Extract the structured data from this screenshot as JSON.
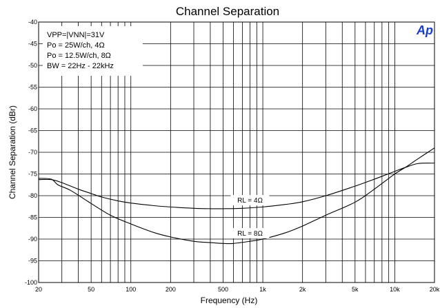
{
  "chart_data": {
    "type": "line",
    "title": "Channel Separation",
    "xlabel": "Frequency (Hz)",
    "ylabel": "Channel Separation (dBr)",
    "x_scale": "log",
    "xlim": [
      20,
      20000
    ],
    "ylim": [
      -100,
      -40
    ],
    "grid": true,
    "x_ticks": [
      {
        "value": 20,
        "label": "20"
      },
      {
        "value": 50,
        "label": "50"
      },
      {
        "value": 100,
        "label": "100"
      },
      {
        "value": 200,
        "label": "200"
      },
      {
        "value": 500,
        "label": "500"
      },
      {
        "value": 1000,
        "label": "1k"
      },
      {
        "value": 2000,
        "label": "2k"
      },
      {
        "value": 5000,
        "label": "5k"
      },
      {
        "value": 10000,
        "label": "10k"
      },
      {
        "value": 20000,
        "label": "20k"
      }
    ],
    "y_ticks": [
      {
        "value": -40,
        "label": "-40"
      },
      {
        "value": -45,
        "label": "-45"
      },
      {
        "value": -50,
        "label": "-50"
      },
      {
        "value": -55,
        "label": "-55"
      },
      {
        "value": -60,
        "label": "-60"
      },
      {
        "value": -65,
        "label": "-65"
      },
      {
        "value": -70,
        "label": "-70"
      },
      {
        "value": -75,
        "label": "-75"
      },
      {
        "value": -80,
        "label": "-80"
      },
      {
        "value": -85,
        "label": "-85"
      },
      {
        "value": -90,
        "label": "-90"
      },
      {
        "value": -95,
        "label": "-95"
      },
      {
        "value": -100,
        "label": "-100"
      }
    ],
    "series": [
      {
        "name": "RL = 4Ω",
        "x": [
          20,
          25,
          30,
          40,
          50,
          60,
          80,
          100,
          150,
          200,
          300,
          400,
          500,
          700,
          1000,
          1500,
          2000,
          3000,
          5000,
          7000,
          10000,
          12000,
          15000,
          20000
        ],
        "y": [
          -76.3,
          -76.3,
          -77.0,
          -78.5,
          -79.5,
          -80.3,
          -81.2,
          -81.7,
          -82.3,
          -82.6,
          -82.9,
          -83.0,
          -83.0,
          -82.9,
          -82.6,
          -82.0,
          -81.4,
          -80.0,
          -77.8,
          -76.2,
          -74.4,
          -73.5,
          -72.6,
          -72.5
        ]
      },
      {
        "name": "RL = 8Ω",
        "x": [
          20,
          25,
          28,
          35,
          50,
          70,
          100,
          150,
          200,
          300,
          400,
          500,
          600,
          800,
          1000,
          1500,
          2000,
          3000,
          5000,
          7000,
          10000,
          12000,
          15000,
          20000
        ],
        "y": [
          -76.0,
          -76.2,
          -77.5,
          -78.8,
          -81.8,
          -84.5,
          -86.5,
          -88.5,
          -89.5,
          -90.5,
          -90.8,
          -91.0,
          -91.0,
          -90.5,
          -90.0,
          -88.5,
          -87.0,
          -84.5,
          -81.5,
          -78.5,
          -75.0,
          -73.5,
          -71.5,
          -69.0
        ]
      }
    ],
    "curve_labels": [
      {
        "text": "RL = 4Ω",
        "x": 800,
        "y": -81.6
      },
      {
        "text": "RL = 8Ω",
        "x": 800,
        "y": -89.2
      }
    ],
    "annotations": [
      "VPP=|VNN|=31V",
      "Po = 25W/ch, 4Ω",
      "Po = 12.5W/ch, 8Ω",
      "BW = 22Hz - 22kHz"
    ],
    "logo": "Ap",
    "colors": {
      "line": "#000000",
      "grid": "#000000",
      "logo": "#1a3cc8"
    }
  }
}
